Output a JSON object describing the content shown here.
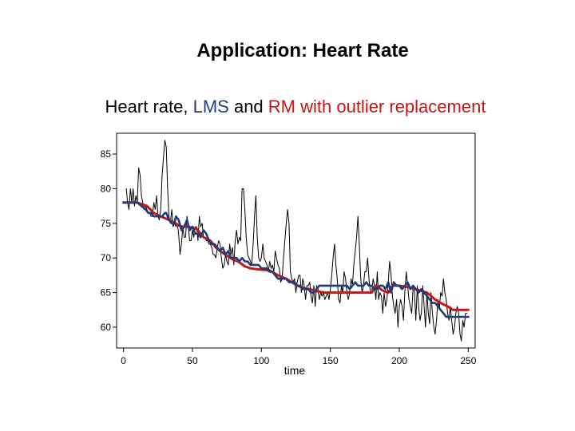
{
  "slide": {
    "title": "Application: Heart Rate"
  },
  "subtitle": {
    "part1": "Heart rate, ",
    "lms": "LMS",
    "part2": " and ",
    "rm": "RM with outlier replacement"
  },
  "colors": {
    "raw": "#000000",
    "lms": "#1f3d7a",
    "rm": "#c81414"
  },
  "chart_data": {
    "type": "line",
    "xlabel": "time",
    "ylabel": "",
    "xlim": [
      -5,
      255
    ],
    "ylim": [
      57,
      88
    ],
    "x_ticks": [
      0,
      50,
      100,
      150,
      200,
      250
    ],
    "y_ticks": [
      60,
      65,
      70,
      75,
      80,
      85
    ],
    "grid": false,
    "series": [
      {
        "key": "raw",
        "x": [
          2,
          3,
          4,
          5,
          6,
          7,
          8,
          9,
          10,
          11,
          12,
          13,
          14,
          15,
          16,
          17,
          18,
          19,
          20,
          21,
          22,
          23,
          24,
          25,
          26,
          27,
          28,
          29,
          30,
          31,
          32,
          33,
          34,
          35,
          36,
          37,
          38,
          39,
          40,
          41,
          42,
          43,
          44,
          45,
          46,
          47,
          48,
          49,
          50,
          51,
          52,
          53,
          54,
          55,
          56,
          57,
          58,
          59,
          60,
          61,
          62,
          63,
          64,
          65,
          66,
          67,
          68,
          69,
          70,
          71,
          72,
          73,
          74,
          75,
          76,
          77,
          78,
          79,
          80,
          81,
          82,
          83,
          84,
          85,
          86,
          87,
          88,
          89,
          90,
          91,
          92,
          93,
          94,
          95,
          96,
          97,
          98,
          99,
          100,
          101,
          102,
          103,
          104,
          105,
          106,
          107,
          108,
          109,
          110,
          111,
          112,
          113,
          114,
          115,
          116,
          117,
          118,
          119,
          120,
          121,
          122,
          123,
          124,
          125,
          126,
          127,
          128,
          129,
          130,
          131,
          132,
          133,
          134,
          135,
          136,
          137,
          138,
          139,
          140,
          141,
          142,
          143,
          144,
          145,
          146,
          147,
          148,
          149,
          150,
          151,
          152,
          153,
          154,
          155,
          156,
          157,
          158,
          159,
          160,
          161,
          162,
          163,
          164,
          165,
          166,
          167,
          168,
          169,
          170,
          171,
          172,
          173,
          174,
          175,
          176,
          177,
          178,
          179,
          180,
          181,
          182,
          183,
          184,
          185,
          186,
          187,
          188,
          189,
          190,
          191,
          192,
          193,
          194,
          195,
          196,
          197,
          198,
          199,
          200,
          201,
          202,
          203,
          204,
          205,
          206,
          207,
          208,
          209,
          210,
          211,
          212,
          213,
          214,
          215,
          216,
          217,
          218,
          219,
          220,
          221,
          222,
          223,
          224,
          225,
          226,
          227,
          228,
          229,
          230,
          231,
          232,
          233,
          234,
          235,
          236,
          237,
          238,
          239,
          240,
          241,
          242,
          243,
          244,
          245,
          246,
          247,
          248,
          249
        ],
        "values": [
          80,
          78,
          77,
          80,
          78,
          80,
          77.5,
          79,
          78,
          83,
          82,
          79,
          78,
          77,
          77.5,
          77,
          76.5,
          76.5,
          76,
          76,
          78,
          77,
          79,
          76,
          75.5,
          77,
          82,
          84.5,
          87,
          86,
          80,
          76,
          75,
          77,
          74.5,
          75,
          74.5,
          75,
          73.5,
          70.5,
          72,
          74.5,
          73,
          73,
          76,
          74.5,
          72.5,
          72.5,
          74,
          73,
          74.5,
          74.5,
          72.5,
          76,
          74.5,
          75,
          73,
          73,
          72.5,
          72.5,
          72,
          72,
          71.5,
          70.5,
          70.5,
          70,
          71.5,
          72.5,
          72,
          70,
          68.5,
          69,
          70.5,
          69.5,
          69,
          72,
          70.5,
          71.5,
          69,
          72.5,
          74,
          72,
          73,
          72.5,
          80,
          80,
          77,
          73,
          70.5,
          70,
          69.5,
          69,
          72,
          76,
          79,
          73,
          70,
          69.5,
          70,
          72,
          70,
          69.5,
          69,
          68,
          69.5,
          68.5,
          69,
          68,
          71,
          70,
          69,
          68.5,
          66.5,
          67,
          70,
          72.5,
          75,
          77,
          75,
          68,
          67,
          66.5,
          67,
          65,
          66.5,
          67.5,
          67.5,
          65,
          67,
          66,
          64,
          66,
          66,
          66.5,
          64.5,
          63.5,
          66,
          63,
          66,
          65.5,
          64,
          65,
          64.5,
          65,
          64,
          64.5,
          65,
          64,
          65.5,
          67.5,
          70,
          72,
          69,
          67,
          64,
          63.5,
          66,
          65,
          68,
          67,
          65,
          64,
          65,
          67,
          66,
          69,
          71,
          73,
          76,
          72,
          67,
          65,
          66,
          68,
          68,
          70,
          67,
          65,
          65,
          67,
          66,
          64,
          68,
          64,
          65,
          64.5,
          62,
          65,
          63,
          64,
          66.5,
          69.5,
          67.5,
          64.5,
          63,
          62,
          64,
          60,
          63,
          64,
          63,
          61,
          65,
          68,
          66,
          64,
          63,
          62,
          66,
          65,
          61,
          66,
          63,
          61,
          62,
          66,
          63,
          60,
          65,
          62,
          60.5,
          65,
          62,
          60,
          59,
          61,
          64,
          62.5,
          65,
          64.5,
          67,
          65,
          64,
          62,
          61,
          63,
          61,
          59,
          60,
          62,
          63,
          62,
          59,
          58,
          61,
          60,
          62,
          62
        ],
        "stroke_width": 1
      },
      {
        "key": "rm",
        "x": [
          0,
          10,
          17,
          22,
          27,
          33,
          38,
          40,
          43,
          47,
          53,
          58,
          63,
          67,
          70,
          76,
          80,
          83,
          88,
          92,
          96,
          100,
          106,
          112,
          118,
          122,
          126,
          130,
          135,
          140,
          146,
          150,
          152,
          155,
          160,
          170,
          180,
          183,
          188,
          192,
          195,
          200,
          206,
          212,
          215,
          220,
          223,
          226,
          230,
          235,
          239,
          242,
          244,
          247,
          250
        ],
        "values": [
          78,
          78,
          77.5,
          76.5,
          76,
          75.5,
          75,
          74.7,
          74.5,
          74.5,
          74.2,
          73,
          72.5,
          71.5,
          71,
          70.2,
          69.7,
          69.5,
          68.8,
          68.5,
          68.4,
          68.3,
          68.2,
          67.5,
          67,
          66.5,
          66,
          65.7,
          65.5,
          65.2,
          65,
          65,
          65,
          65,
          65,
          65,
          65,
          66,
          65.3,
          65,
          66,
          66,
          65.8,
          65.5,
          65.3,
          65,
          64.5,
          64,
          63.5,
          63,
          62.5,
          62.5,
          62.5,
          62.5,
          62.5
        ],
        "stroke_width": 3
      },
      {
        "key": "lms",
        "x": [
          0,
          10,
          13,
          16,
          18,
          20,
          22,
          25,
          28,
          30,
          31,
          33,
          35,
          37,
          38,
          40,
          42,
          44,
          46,
          48,
          50,
          52,
          54,
          56,
          58,
          60,
          62,
          64,
          66,
          68,
          70,
          72,
          74,
          76,
          78,
          80,
          82,
          84,
          86,
          88,
          90,
          92,
          94,
          96,
          98,
          100,
          102,
          104,
          106,
          108,
          110,
          112,
          114,
          116,
          118,
          120,
          122,
          124,
          126,
          128,
          130,
          132,
          134,
          136,
          138,
          140,
          142,
          144,
          146,
          148,
          150,
          152,
          154,
          156,
          158,
          160,
          162,
          164,
          166,
          168,
          170,
          172,
          174,
          176,
          178,
          180,
          182,
          184,
          186,
          188,
          190,
          192,
          194,
          196,
          198,
          200,
          202,
          204,
          206,
          208,
          210,
          212,
          214,
          216,
          218,
          220,
          222,
          224,
          226,
          228,
          230,
          232,
          234,
          236,
          238,
          240,
          242,
          244,
          246,
          248,
          250
        ],
        "values": [
          78,
          78,
          77.5,
          77,
          76.5,
          76.5,
          76,
          76,
          76,
          76.5,
          76.5,
          75.5,
          75,
          75,
          76,
          75.5,
          74,
          74.5,
          75.5,
          74,
          74.5,
          73.5,
          73.5,
          73,
          74,
          73.5,
          72.5,
          72,
          72,
          71.5,
          71,
          71.5,
          70.5,
          71,
          70,
          70,
          70,
          69.5,
          70,
          69.5,
          69.5,
          69,
          69,
          69,
          69,
          68.5,
          68.5,
          68.5,
          68,
          68,
          67.5,
          67,
          67,
          67,
          67,
          66.5,
          66.5,
          66.5,
          66,
          66,
          65.5,
          65.5,
          65.5,
          65,
          65,
          65.5,
          66,
          66,
          66,
          66,
          66,
          66,
          66,
          66,
          66,
          66,
          66,
          65.5,
          66,
          66.5,
          66,
          66,
          66,
          66.5,
          66,
          66,
          65.5,
          65.5,
          66,
          66,
          65.5,
          66.5,
          65,
          66.5,
          66,
          66,
          65.5,
          66,
          66.5,
          65.5,
          66,
          65.5,
          65,
          65.5,
          65,
          64.5,
          64,
          63.5,
          63.5,
          63,
          62.5,
          62,
          61.5,
          61.5,
          61.5,
          61.5,
          61.5,
          61.5,
          61.5,
          61.5,
          61.5
        ],
        "stroke_width": 2.6
      }
    ]
  }
}
